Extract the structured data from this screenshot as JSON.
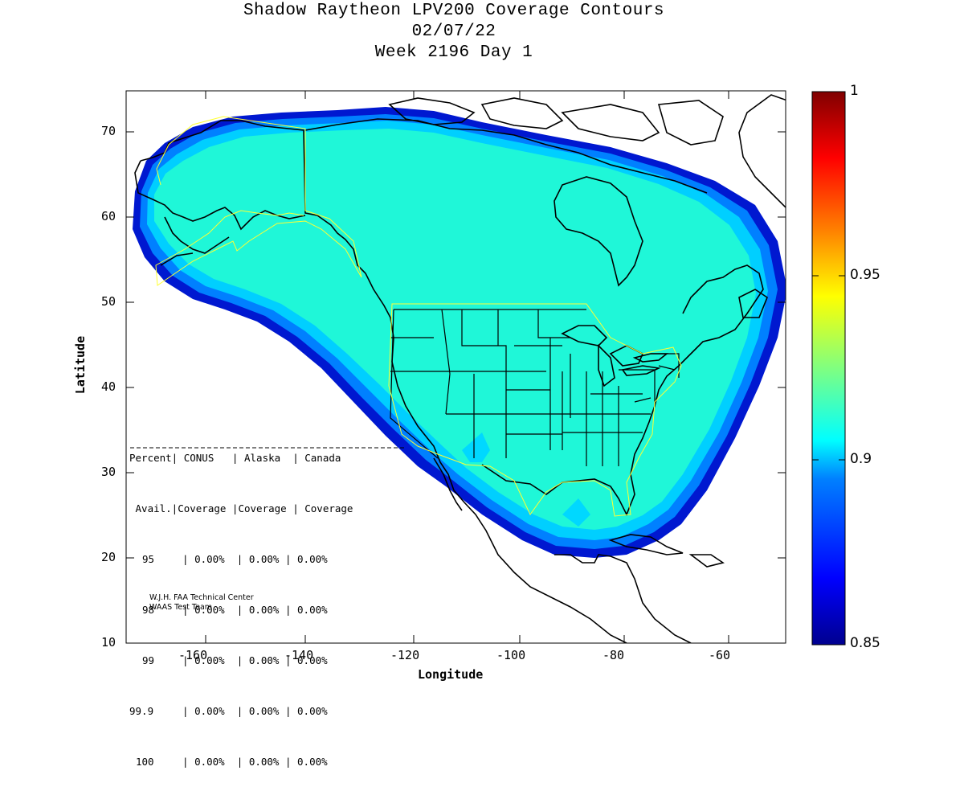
{
  "header": {
    "title": "Shadow Raytheon LPV200 Coverage Contours",
    "date": "02/07/22",
    "week": "Week 2196 Day 1"
  },
  "axes": {
    "xlabel": "Longitude",
    "ylabel": "Latitude",
    "xlim": [
      -175,
      -50
    ],
    "ylim": [
      10,
      75
    ],
    "xticks": [
      "-160",
      "-140",
      "-120",
      "-100",
      "-80",
      "-60"
    ],
    "yticks": [
      "10",
      "20",
      "30",
      "40",
      "50",
      "60",
      "70"
    ]
  },
  "colorbar": {
    "range": [
      0.85,
      1
    ],
    "ticks": [
      "0.85",
      "0.9",
      "0.95",
      "1"
    ]
  },
  "stats_table": {
    "header1": "Percent| CONUS   | Alaska  | Canada",
    "header2": " Avail.|Coverage |Coverage | Coverage",
    "rows": [
      {
        "pct": "95",
        "conus": "0.00%",
        "alaska": "0.00%",
        "canada": "0.00%"
      },
      {
        "pct": "98",
        "conus": "0.00%",
        "alaska": "0.00%",
        "canada": "0.00%"
      },
      {
        "pct": "99",
        "conus": "0.00%",
        "alaska": "0.00%",
        "canada": "0.00%"
      },
      {
        "pct": "99.9",
        "conus": "0.00%",
        "alaska": "0.00%",
        "canada": "0.00%"
      },
      {
        "pct": "100",
        "conus": "0.00%",
        "alaska": "0.00%",
        "canada": "0.00%"
      }
    ]
  },
  "credit": {
    "line1": "W.J.H. FAA Technical Center",
    "line2": "WAAS Test Team"
  },
  "colors": {
    "coverage_fill": "#1ff7d8",
    "edge_light": "#00cfff",
    "edge_mid": "#0080ff",
    "edge_dark": "#0018d0",
    "service_boundary": "#ffff33"
  }
}
